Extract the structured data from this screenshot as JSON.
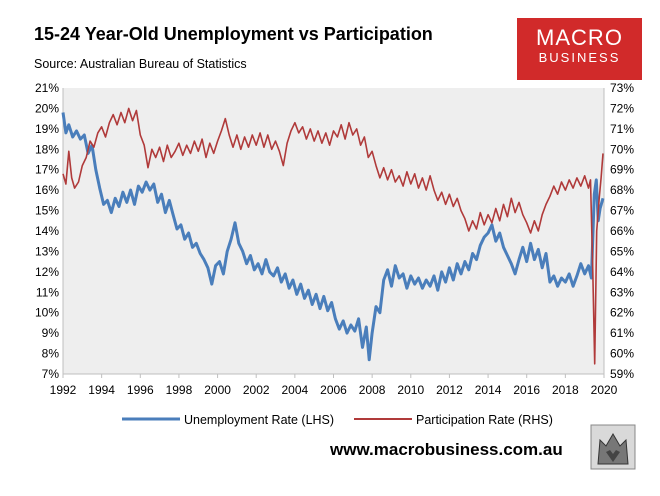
{
  "title": "15-24 Year-Old Unemployment vs Participation",
  "subtitle": "Source: Australian Bureau of Statistics",
  "logo": {
    "line1": "MACRO",
    "line2": "BUSINESS"
  },
  "website": "www.macrobusiness.com.au",
  "colors": {
    "unemployment": "#4a7ebb",
    "participation": "#b03a3a",
    "plot_bg": "#eeeeee",
    "logo_bg": "#d12a2a"
  },
  "chart_data": {
    "type": "line",
    "x_ticks": [
      "1992",
      "1994",
      "1996",
      "1998",
      "2000",
      "2002",
      "2004",
      "2006",
      "2008",
      "2010",
      "2012",
      "2014",
      "2016",
      "2018",
      "2020"
    ],
    "xlim": [
      1992,
      2020
    ],
    "y_left_ticks": [
      "21%",
      "20%",
      "19%",
      "18%",
      "17%",
      "16%",
      "15%",
      "14%",
      "13%",
      "12%",
      "11%",
      "10%",
      "9%",
      "8%",
      "7%"
    ],
    "ylim_left": [
      7,
      21
    ],
    "y_right_ticks": [
      "73%",
      "72%",
      "71%",
      "70%",
      "69%",
      "68%",
      "67%",
      "66%",
      "65%",
      "64%",
      "63%",
      "62%",
      "61%",
      "60%",
      "59%"
    ],
    "ylim_right": [
      59,
      73
    ],
    "grid": false,
    "legend_position": "bottom",
    "series": [
      {
        "name": "Unemployment Rate (LHS)",
        "axis": "left",
        "points": [
          [
            1992.0,
            19.8
          ],
          [
            1992.15,
            18.8
          ],
          [
            1992.3,
            19.2
          ],
          [
            1992.5,
            18.6
          ],
          [
            1992.7,
            18.9
          ],
          [
            1992.9,
            18.5
          ],
          [
            1993.1,
            18.7
          ],
          [
            1993.3,
            17.8
          ],
          [
            1993.5,
            18.2
          ],
          [
            1993.7,
            17.0
          ],
          [
            1993.9,
            16.1
          ],
          [
            1994.1,
            15.3
          ],
          [
            1994.3,
            15.5
          ],
          [
            1994.5,
            14.9
          ],
          [
            1994.7,
            15.6
          ],
          [
            1994.9,
            15.2
          ],
          [
            1995.1,
            15.9
          ],
          [
            1995.3,
            15.4
          ],
          [
            1995.5,
            16.0
          ],
          [
            1995.7,
            15.3
          ],
          [
            1995.9,
            16.2
          ],
          [
            1996.1,
            15.9
          ],
          [
            1996.3,
            16.4
          ],
          [
            1996.5,
            16.0
          ],
          [
            1996.7,
            16.3
          ],
          [
            1996.9,
            15.4
          ],
          [
            1997.1,
            15.8
          ],
          [
            1997.3,
            14.9
          ],
          [
            1997.5,
            15.5
          ],
          [
            1997.7,
            14.8
          ],
          [
            1997.9,
            14.1
          ],
          [
            1998.1,
            14.3
          ],
          [
            1998.3,
            13.6
          ],
          [
            1998.5,
            13.9
          ],
          [
            1998.7,
            13.2
          ],
          [
            1998.9,
            13.4
          ],
          [
            1999.1,
            12.9
          ],
          [
            1999.3,
            12.6
          ],
          [
            1999.5,
            12.2
          ],
          [
            1999.7,
            11.4
          ],
          [
            1999.9,
            12.3
          ],
          [
            2000.1,
            12.5
          ],
          [
            2000.3,
            11.9
          ],
          [
            2000.5,
            13.0
          ],
          [
            2000.7,
            13.6
          ],
          [
            2000.9,
            14.4
          ],
          [
            2001.1,
            13.4
          ],
          [
            2001.3,
            13.0
          ],
          [
            2001.5,
            12.4
          ],
          [
            2001.7,
            12.8
          ],
          [
            2001.9,
            12.1
          ],
          [
            2002.1,
            12.4
          ],
          [
            2002.3,
            11.9
          ],
          [
            2002.5,
            12.6
          ],
          [
            2002.7,
            12.0
          ],
          [
            2002.9,
            11.8
          ],
          [
            2003.1,
            12.2
          ],
          [
            2003.3,
            11.5
          ],
          [
            2003.5,
            11.9
          ],
          [
            2003.7,
            11.2
          ],
          [
            2003.9,
            11.6
          ],
          [
            2004.1,
            10.9
          ],
          [
            2004.3,
            11.4
          ],
          [
            2004.5,
            10.7
          ],
          [
            2004.7,
            11.1
          ],
          [
            2004.9,
            10.4
          ],
          [
            2005.1,
            10.9
          ],
          [
            2005.3,
            10.2
          ],
          [
            2005.5,
            10.8
          ],
          [
            2005.7,
            10.1
          ],
          [
            2005.9,
            10.5
          ],
          [
            2006.1,
            9.7
          ],
          [
            2006.3,
            9.2
          ],
          [
            2006.5,
            9.6
          ],
          [
            2006.7,
            9.0
          ],
          [
            2006.9,
            9.4
          ],
          [
            2007.1,
            9.1
          ],
          [
            2007.3,
            9.7
          ],
          [
            2007.5,
            8.3
          ],
          [
            2007.7,
            9.3
          ],
          [
            2007.85,
            7.7
          ],
          [
            2008.0,
            9.0
          ],
          [
            2008.2,
            10.3
          ],
          [
            2008.4,
            10.0
          ],
          [
            2008.6,
            11.6
          ],
          [
            2008.8,
            12.1
          ],
          [
            2009.0,
            11.3
          ],
          [
            2009.2,
            12.3
          ],
          [
            2009.4,
            11.7
          ],
          [
            2009.6,
            11.9
          ],
          [
            2009.8,
            11.2
          ],
          [
            2010.0,
            11.8
          ],
          [
            2010.2,
            11.4
          ],
          [
            2010.4,
            11.7
          ],
          [
            2010.6,
            11.2
          ],
          [
            2010.8,
            11.6
          ],
          [
            2011.0,
            11.3
          ],
          [
            2011.2,
            11.8
          ],
          [
            2011.4,
            11.1
          ],
          [
            2011.6,
            12.0
          ],
          [
            2011.8,
            11.5
          ],
          [
            2012.0,
            12.2
          ],
          [
            2012.2,
            11.6
          ],
          [
            2012.4,
            12.4
          ],
          [
            2012.6,
            11.9
          ],
          [
            2012.8,
            12.5
          ],
          [
            2013.0,
            12.1
          ],
          [
            2013.2,
            12.9
          ],
          [
            2013.4,
            12.6
          ],
          [
            2013.6,
            13.3
          ],
          [
            2013.8,
            13.7
          ],
          [
            2014.0,
            13.9
          ],
          [
            2014.2,
            14.3
          ],
          [
            2014.4,
            13.5
          ],
          [
            2014.6,
            13.9
          ],
          [
            2014.8,
            13.2
          ],
          [
            2015.0,
            12.8
          ],
          [
            2015.2,
            12.4
          ],
          [
            2015.4,
            11.9
          ],
          [
            2015.6,
            12.6
          ],
          [
            2015.8,
            13.2
          ],
          [
            2016.0,
            12.5
          ],
          [
            2016.2,
            13.4
          ],
          [
            2016.4,
            12.6
          ],
          [
            2016.6,
            13.1
          ],
          [
            2016.8,
            12.2
          ],
          [
            2017.0,
            12.9
          ],
          [
            2017.2,
            11.5
          ],
          [
            2017.4,
            11.8
          ],
          [
            2017.6,
            11.3
          ],
          [
            2017.8,
            11.7
          ],
          [
            2018.0,
            11.5
          ],
          [
            2018.2,
            11.9
          ],
          [
            2018.4,
            11.3
          ],
          [
            2018.6,
            11.8
          ],
          [
            2018.8,
            12.4
          ],
          [
            2019.0,
            11.9
          ],
          [
            2019.2,
            12.3
          ],
          [
            2019.35,
            11.7
          ],
          [
            2019.5,
            15.8
          ],
          [
            2019.6,
            16.5
          ],
          [
            2019.7,
            14.5
          ],
          [
            2019.8,
            15.1
          ],
          [
            2019.95,
            15.6
          ]
        ]
      },
      {
        "name": "Participation Rate (RHS)",
        "axis": "right",
        "points": [
          [
            1992.0,
            68.8
          ],
          [
            1992.15,
            68.3
          ],
          [
            1992.3,
            69.9
          ],
          [
            1992.45,
            68.6
          ],
          [
            1992.6,
            68.1
          ],
          [
            1992.8,
            68.4
          ],
          [
            1993.0,
            69.2
          ],
          [
            1993.2,
            69.6
          ],
          [
            1993.4,
            70.4
          ],
          [
            1993.6,
            70.1
          ],
          [
            1993.8,
            70.8
          ],
          [
            1994.0,
            71.1
          ],
          [
            1994.2,
            70.6
          ],
          [
            1994.4,
            71.3
          ],
          [
            1994.6,
            71.7
          ],
          [
            1994.8,
            71.2
          ],
          [
            1995.0,
            71.8
          ],
          [
            1995.2,
            71.3
          ],
          [
            1995.4,
            72.0
          ],
          [
            1995.6,
            71.4
          ],
          [
            1995.8,
            71.9
          ],
          [
            1996.0,
            70.7
          ],
          [
            1996.2,
            70.2
          ],
          [
            1996.4,
            69.1
          ],
          [
            1996.6,
            70.0
          ],
          [
            1996.8,
            69.6
          ],
          [
            1997.0,
            70.1
          ],
          [
            1997.2,
            69.4
          ],
          [
            1997.4,
            70.2
          ],
          [
            1997.6,
            69.6
          ],
          [
            1997.8,
            69.9
          ],
          [
            1998.0,
            70.3
          ],
          [
            1998.2,
            69.7
          ],
          [
            1998.4,
            70.2
          ],
          [
            1998.6,
            69.8
          ],
          [
            1998.8,
            70.4
          ],
          [
            1999.0,
            69.9
          ],
          [
            1999.2,
            70.5
          ],
          [
            1999.4,
            69.6
          ],
          [
            1999.6,
            70.3
          ],
          [
            1999.8,
            69.8
          ],
          [
            2000.0,
            70.4
          ],
          [
            2000.2,
            70.9
          ],
          [
            2000.4,
            71.5
          ],
          [
            2000.6,
            70.7
          ],
          [
            2000.8,
            70.1
          ],
          [
            2001.0,
            70.7
          ],
          [
            2001.2,
            70.0
          ],
          [
            2001.4,
            70.6
          ],
          [
            2001.6,
            70.1
          ],
          [
            2001.8,
            70.7
          ],
          [
            2002.0,
            70.2
          ],
          [
            2002.2,
            70.8
          ],
          [
            2002.4,
            70.1
          ],
          [
            2002.6,
            70.7
          ],
          [
            2002.8,
            70.0
          ],
          [
            2003.0,
            70.4
          ],
          [
            2003.2,
            69.9
          ],
          [
            2003.4,
            69.2
          ],
          [
            2003.6,
            70.3
          ],
          [
            2003.8,
            70.9
          ],
          [
            2004.0,
            71.3
          ],
          [
            2004.2,
            70.8
          ],
          [
            2004.4,
            71.1
          ],
          [
            2004.6,
            70.5
          ],
          [
            2004.8,
            71.0
          ],
          [
            2005.0,
            70.4
          ],
          [
            2005.2,
            70.9
          ],
          [
            2005.4,
            70.3
          ],
          [
            2005.6,
            70.8
          ],
          [
            2005.8,
            70.2
          ],
          [
            2006.0,
            70.9
          ],
          [
            2006.2,
            70.6
          ],
          [
            2006.4,
            71.2
          ],
          [
            2006.6,
            70.5
          ],
          [
            2006.8,
            71.3
          ],
          [
            2007.0,
            70.7
          ],
          [
            2007.2,
            71.0
          ],
          [
            2007.4,
            70.2
          ],
          [
            2007.6,
            70.6
          ],
          [
            2007.8,
            69.6
          ],
          [
            2008.0,
            69.9
          ],
          [
            2008.2,
            69.2
          ],
          [
            2008.4,
            68.6
          ],
          [
            2008.6,
            69.1
          ],
          [
            2008.8,
            68.5
          ],
          [
            2009.0,
            69.0
          ],
          [
            2009.2,
            68.4
          ],
          [
            2009.4,
            68.7
          ],
          [
            2009.6,
            68.2
          ],
          [
            2009.8,
            68.9
          ],
          [
            2010.0,
            68.3
          ],
          [
            2010.2,
            68.8
          ],
          [
            2010.4,
            68.1
          ],
          [
            2010.6,
            68.6
          ],
          [
            2010.8,
            68.0
          ],
          [
            2011.0,
            68.7
          ],
          [
            2011.2,
            68.0
          ],
          [
            2011.4,
            67.5
          ],
          [
            2011.6,
            67.9
          ],
          [
            2011.8,
            67.3
          ],
          [
            2012.0,
            67.8
          ],
          [
            2012.2,
            67.2
          ],
          [
            2012.4,
            67.6
          ],
          [
            2012.6,
            67.0
          ],
          [
            2012.8,
            66.6
          ],
          [
            2013.0,
            66.0
          ],
          [
            2013.2,
            66.5
          ],
          [
            2013.4,
            66.1
          ],
          [
            2013.6,
            66.9
          ],
          [
            2013.8,
            66.3
          ],
          [
            2014.0,
            66.8
          ],
          [
            2014.2,
            66.4
          ],
          [
            2014.4,
            67.1
          ],
          [
            2014.6,
            66.5
          ],
          [
            2014.8,
            67.3
          ],
          [
            2015.0,
            66.7
          ],
          [
            2015.2,
            67.6
          ],
          [
            2015.4,
            66.9
          ],
          [
            2015.6,
            67.4
          ],
          [
            2015.8,
            66.8
          ],
          [
            2016.0,
            66.4
          ],
          [
            2016.2,
            65.9
          ],
          [
            2016.4,
            66.5
          ],
          [
            2016.6,
            66.0
          ],
          [
            2016.8,
            66.8
          ],
          [
            2017.0,
            67.3
          ],
          [
            2017.2,
            67.7
          ],
          [
            2017.4,
            68.2
          ],
          [
            2017.6,
            67.8
          ],
          [
            2017.8,
            68.4
          ],
          [
            2018.0,
            68.0
          ],
          [
            2018.2,
            68.5
          ],
          [
            2018.4,
            68.1
          ],
          [
            2018.6,
            68.6
          ],
          [
            2018.8,
            68.2
          ],
          [
            2019.0,
            68.7
          ],
          [
            2019.2,
            68.1
          ],
          [
            2019.3,
            68.5
          ],
          [
            2019.42,
            64.0
          ],
          [
            2019.52,
            59.5
          ],
          [
            2019.62,
            66.0
          ],
          [
            2019.75,
            67.6
          ],
          [
            2019.85,
            68.6
          ],
          [
            2019.95,
            69.8
          ]
        ]
      }
    ]
  }
}
